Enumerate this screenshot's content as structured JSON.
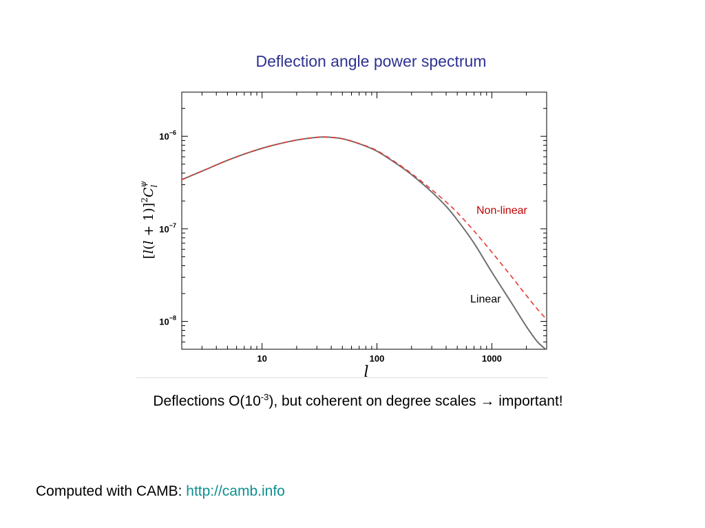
{
  "slide": {
    "title": "Deflection angle power spectrum",
    "caption_before": "Deflections O(10",
    "caption_sup": "-3",
    "caption_after": "), but coherent on degree scales",
    "caption_arrow": "→",
    "caption_end": "important!",
    "footer_prefix": "Computed with CAMB:",
    "footer_link": "http://camb.info"
  },
  "colors": {
    "title": "#2e3192",
    "linear": "#6e6e6e",
    "nonlinear": "#e8352e",
    "nonlinear_label": "#c00000",
    "link": "#0d8f8f"
  },
  "chart_data": {
    "type": "line",
    "xscale": "log",
    "yscale": "log",
    "xlim": [
      2,
      3000
    ],
    "ylim": [
      5e-09,
      3e-06
    ],
    "xticks": [
      {
        "value": 10,
        "label": "10"
      },
      {
        "value": 100,
        "label": "100"
      },
      {
        "value": 1000,
        "label": "1000"
      }
    ],
    "yticks": [
      {
        "value": 1e-06,
        "label_base": "10",
        "label_exp": "−6"
      },
      {
        "value": 1e-07,
        "label_base": "10",
        "label_exp": "−7"
      },
      {
        "value": 1e-08,
        "label_base": "10",
        "label_exp": "−8"
      }
    ],
    "xlabel": "l",
    "ylabel": "[l(l+1)]²C_l^ψ",
    "grid": false,
    "series": [
      {
        "name": "Linear",
        "style": "solid",
        "x": [
          2,
          3,
          5,
          8,
          12,
          20,
          30,
          37,
          50,
          70,
          100,
          150,
          200,
          300,
          400,
          500,
          700,
          1000,
          1500,
          2000,
          2500,
          3000
        ],
        "y": [
          3.4e-07,
          4.2e-07,
          5.5e-07,
          6.8e-07,
          7.9e-07,
          9.1e-07,
          9.75e-07,
          9.8e-07,
          9.4e-07,
          8.3e-07,
          6.9e-07,
          5e-07,
          3.85e-07,
          2.5e-07,
          1.75e-07,
          1.25e-07,
          7e-08,
          3.4e-08,
          1.55e-08,
          8.8e-09,
          6e-09,
          4.9e-09
        ]
      },
      {
        "name": "Non-linear",
        "style": "dashed",
        "x": [
          2,
          3,
          5,
          8,
          12,
          20,
          30,
          37,
          50,
          70,
          100,
          150,
          200,
          300,
          400,
          500,
          700,
          1000,
          1500,
          2000,
          2500,
          3000
        ],
        "y": [
          3.4e-07,
          4.2e-07,
          5.5e-07,
          6.8e-07,
          7.9e-07,
          9.1e-07,
          9.75e-07,
          9.8e-07,
          9.4e-07,
          8.35e-07,
          7e-07,
          5.1e-07,
          3.95e-07,
          2.65e-07,
          1.95e-07,
          1.5e-07,
          9.5e-08,
          5.6e-08,
          3e-08,
          1.9e-08,
          1.35e-08,
          1.05e-08
        ]
      }
    ],
    "annotations": [
      {
        "text": "Non-linear",
        "series": "Non-linear"
      },
      {
        "text": "Linear",
        "series": "Linear"
      }
    ]
  }
}
